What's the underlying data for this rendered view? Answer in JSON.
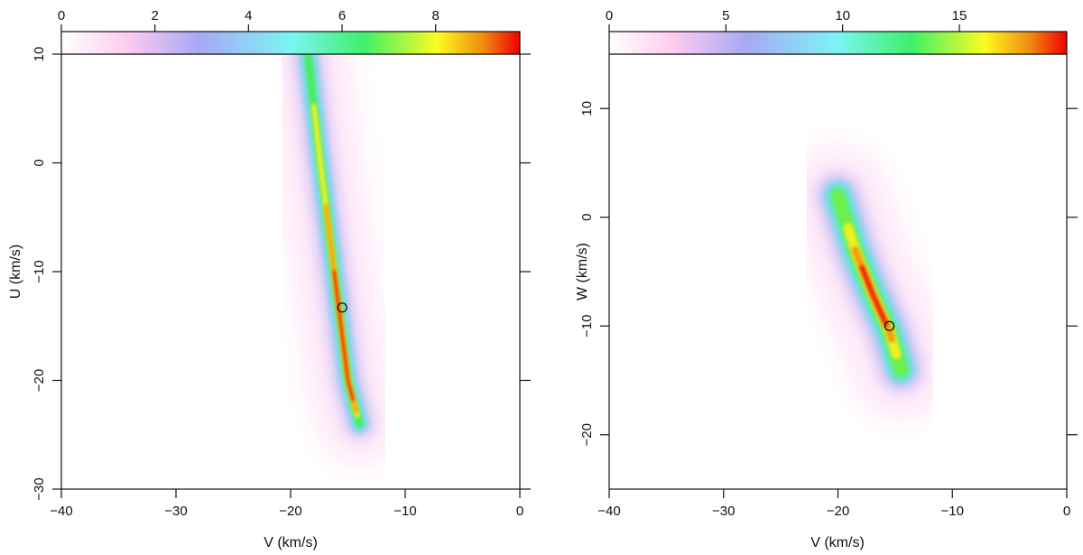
{
  "chart_data": [
    {
      "id": "uv",
      "type": "heatmap",
      "title": "",
      "xlabel": "V (km/s)",
      "ylabel": "U (km/s)",
      "xlim": [
        -40,
        0
      ],
      "ylim": [
        -30,
        10
      ],
      "xticks": [
        -40,
        -30,
        -20,
        -10,
        0
      ],
      "yticks": [
        -30,
        -20,
        -10,
        0,
        10
      ],
      "xtick_labels": [
        "−40",
        "−30",
        "−20",
        "−10",
        "0"
      ],
      "ytick_labels": [
        "−30",
        "−20",
        "−10",
        "0",
        "10"
      ],
      "colorbar": {
        "range": [
          0,
          9.8
        ],
        "ticks": [
          0,
          2,
          4,
          6,
          8
        ],
        "tick_labels": [
          "0",
          "2",
          "4",
          "6",
          "8"
        ],
        "colors": [
          "#ffffff",
          "#ffccf0",
          "#a8a8f4",
          "#7cf4f4",
          "#3ef06a",
          "#fcfc20",
          "#f08a10",
          "#f00000"
        ]
      },
      "density_ridge": {
        "points": [
          {
            "v": -18.5,
            "u": 10
          },
          {
            "v": -17.4,
            "u": 0
          },
          {
            "v": -16.2,
            "u": -10
          },
          {
            "v": -15.0,
            "u": -20
          },
          {
            "v": -14.0,
            "u": -24
          }
        ],
        "peak_value": 9.8
      },
      "marker": {
        "v": -15.5,
        "u": -13.3
      }
    },
    {
      "id": "vw",
      "type": "heatmap",
      "title": "",
      "xlabel": "V (km/s)",
      "ylabel": "W (km/s)",
      "xlim": [
        -40,
        0
      ],
      "ylim": [
        -25,
        15
      ],
      "xticks": [
        -40,
        -30,
        -20,
        -10,
        0
      ],
      "yticks": [
        -20,
        -10,
        0,
        10
      ],
      "xtick_labels": [
        "−40",
        "−30",
        "−20",
        "−10",
        "0"
      ],
      "ytick_labels": [
        "−20",
        "−10",
        "0",
        "10"
      ],
      "colorbar": {
        "range": [
          0,
          19.6
        ],
        "ticks": [
          0,
          5,
          10,
          15
        ],
        "tick_labels": [
          "0",
          "5",
          "10",
          "15"
        ],
        "colors": [
          "#ffffff",
          "#ffccf0",
          "#a8a8f4",
          "#7cf4f4",
          "#3ef06a",
          "#fcfc20",
          "#f08a10",
          "#f00000"
        ]
      },
      "density_ridge": {
        "points": [
          {
            "v": -20.0,
            "u": 2
          },
          {
            "v": -18.5,
            "u": -3
          },
          {
            "v": -17.0,
            "u": -7
          },
          {
            "v": -15.5,
            "u": -10.5
          },
          {
            "v": -14.5,
            "u": -14
          }
        ],
        "peak_value": 19.6
      },
      "marker": {
        "v": -15.5,
        "u": -10
      }
    }
  ]
}
